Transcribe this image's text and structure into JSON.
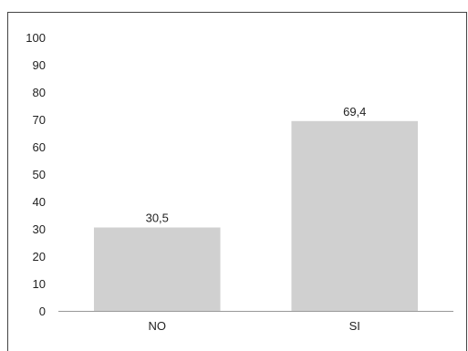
{
  "chart_data": {
    "type": "bar",
    "categories": [
      "NO",
      "SI"
    ],
    "values": [
      30.5,
      69.4
    ],
    "value_labels": [
      "30,5",
      "69,4"
    ],
    "yticks": [
      0,
      10,
      20,
      30,
      40,
      50,
      60,
      70,
      80,
      90,
      100
    ],
    "ylim": [
      0,
      100
    ],
    "title": "",
    "xlabel": "",
    "ylabel": "",
    "grid": false,
    "bar_color": "#d0d0d0",
    "axis_color": "#999999",
    "text_color": "#222222"
  }
}
